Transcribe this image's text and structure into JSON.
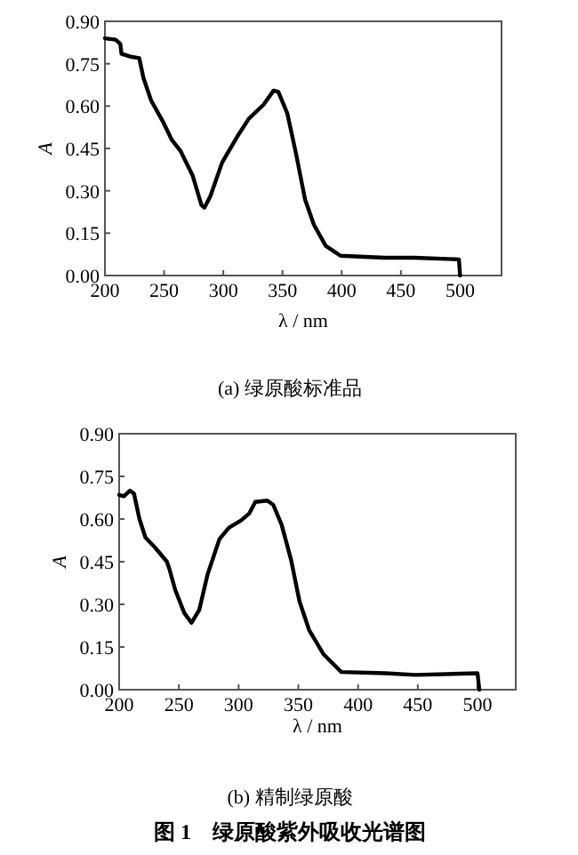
{
  "chart_data": [
    {
      "type": "line",
      "title": "(a) 绿原酸标准品",
      "xlabel": "λ / nm",
      "ylabel": "A",
      "xlim": [
        200,
        535
      ],
      "ylim": [
        0,
        0.9
      ],
      "xticks": [
        200,
        250,
        300,
        350,
        400,
        450,
        500
      ],
      "yticks": [
        {
          "value": 0,
          "label": "0.00"
        },
        {
          "value": 0.15,
          "label": "0.15"
        },
        {
          "value": 0.3,
          "label": "0.30"
        },
        {
          "value": 0.45,
          "label": "0.45"
        },
        {
          "value": 0.6,
          "label": "0.60"
        },
        {
          "value": 0.75,
          "label": "0.75"
        },
        {
          "value": 0.9,
          "label": "0.90"
        }
      ],
      "grid": false,
      "marker": "none",
      "line_style": "solid",
      "x": [
        200,
        209,
        213,
        214,
        221.5,
        229,
        232.5,
        239,
        249,
        256.5,
        264,
        274,
        281.5,
        284,
        289,
        299,
        311.5,
        321.5,
        334,
        342.5,
        346.5,
        354,
        361.5,
        369,
        376.5,
        386.5,
        399,
        436.5,
        461.5,
        499,
        500
      ],
      "series": [
        {
          "color": "#000000",
          "values": [
            0.84,
            0.835,
            0.82,
            0.785,
            0.775,
            0.77,
            0.7,
            0.62,
            0.545,
            0.48,
            0.44,
            0.355,
            0.25,
            0.24,
            0.28,
            0.4,
            0.49,
            0.555,
            0.605,
            0.655,
            0.65,
            0.575,
            0.43,
            0.27,
            0.18,
            0.105,
            0.07,
            0.063,
            0.063,
            0.057,
            0.0
          ]
        }
      ]
    },
    {
      "type": "line",
      "title": "(b) 精制绿原酸",
      "xlabel": "λ / nm",
      "ylabel": "A",
      "xlim": [
        200,
        532
      ],
      "ylim": [
        0,
        0.9
      ],
      "xticks": [
        200,
        250,
        300,
        350,
        400,
        450,
        500
      ],
      "yticks": [
        {
          "value": 0,
          "label": "0.00"
        },
        {
          "value": 0.15,
          "label": "0.15"
        },
        {
          "value": 0.3,
          "label": "0.30"
        },
        {
          "value": 0.45,
          "label": "0.45"
        },
        {
          "value": 0.6,
          "label": "0.60"
        },
        {
          "value": 0.75,
          "label": "0.75"
        },
        {
          "value": 0.9,
          "label": "0.90"
        }
      ],
      "grid": false,
      "marker": "none",
      "line_style": "solid",
      "annotations": [
        "图 1　绿原酸紫外吸收光谱图"
      ],
      "x": [
        200,
        204,
        209,
        212.4,
        217,
        222,
        230,
        240,
        242,
        247,
        254.5,
        260.5,
        267,
        274,
        284,
        292,
        302,
        309,
        314,
        324,
        329,
        336,
        344,
        351,
        359,
        371,
        386,
        423,
        448,
        500,
        501.5
      ],
      "series": [
        {
          "color": "#000000",
          "values": [
            0.685,
            0.68,
            0.7,
            0.69,
            0.6,
            0.535,
            0.5,
            0.45,
            0.425,
            0.35,
            0.27,
            0.235,
            0.28,
            0.405,
            0.53,
            0.57,
            0.595,
            0.62,
            0.66,
            0.665,
            0.65,
            0.58,
            0.455,
            0.31,
            0.21,
            0.125,
            0.062,
            0.058,
            0.052,
            0.058,
            0.0
          ]
        }
      ]
    }
  ]
}
